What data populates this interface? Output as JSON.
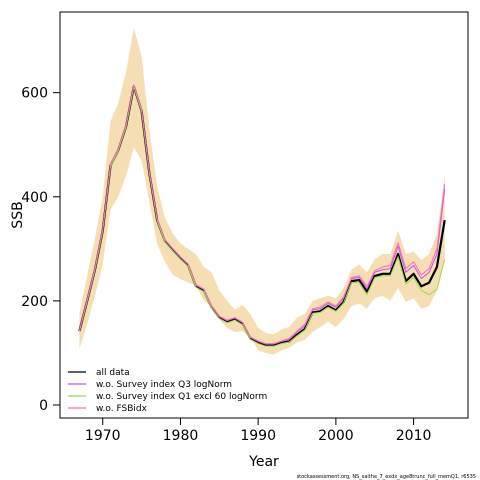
{
  "chart_data": {
    "type": "line",
    "xlabel": "Year",
    "ylabel": "SSB",
    "xlim": [
      1964.5,
      2017
    ],
    "ylim": [
      -25,
      755
    ],
    "xticks": [
      1970,
      1980,
      1990,
      2000,
      2010
    ],
    "yticks": [
      0,
      200,
      400,
      600
    ],
    "grid": false,
    "legend_position": "bottom-left",
    "footer": "stockassessment.org, NS_saithe_7_exdx_age8trunc_full_memQ1, r6535",
    "x": [
      1967,
      1968,
      1969,
      1970,
      1971,
      1972,
      1973,
      1974,
      1975,
      1976,
      1977,
      1978,
      1979,
      1980,
      1981,
      1982,
      1983,
      1984,
      1985,
      1986,
      1987,
      1988,
      1989,
      1990,
      1991,
      1992,
      1993,
      1994,
      1995,
      1996,
      1997,
      1998,
      1999,
      2000,
      2001,
      2002,
      2003,
      2004,
      2005,
      2006,
      2007,
      2008,
      2009,
      2010,
      2011,
      2012,
      2013,
      2014
    ],
    "confidence_band": {
      "color": "#f5deb3",
      "lower": [
        108,
        155,
        210,
        270,
        375,
        400,
        440,
        495,
        470,
        390,
        310,
        275,
        250,
        242,
        235,
        230,
        200,
        190,
        165,
        148,
        140,
        142,
        130,
        105,
        100,
        97,
        105,
        110,
        120,
        125,
        140,
        150,
        160,
        150,
        165,
        190,
        195,
        185,
        205,
        210,
        200,
        225,
        198,
        205,
        185,
        190,
        220,
        275
      ],
      "upper": [
        175,
        250,
        320,
        400,
        545,
        580,
        640,
        725,
        670,
        530,
        420,
        360,
        330,
        310,
        300,
        290,
        265,
        255,
        220,
        200,
        183,
        192,
        175,
        148,
        138,
        136,
        145,
        150,
        168,
        175,
        200,
        205,
        210,
        205,
        225,
        260,
        270,
        255,
        280,
        290,
        290,
        335,
        290,
        295,
        278,
        290,
        330,
        440
      ]
    },
    "series": [
      {
        "name": "all data",
        "color": "#000000",
        "width": 2.2,
        "values": [
          142,
          200,
          260,
          335,
          460,
          490,
          535,
          612,
          565,
          445,
          355,
          315,
          298,
          282,
          268,
          228,
          220,
          188,
          168,
          160,
          165,
          156,
          128,
          120,
          115,
          115,
          120,
          122,
          135,
          146,
          178,
          180,
          190,
          182,
          198,
          238,
          240,
          218,
          248,
          252,
          252,
          290,
          238,
          252,
          228,
          235,
          265,
          355
        ]
      },
      {
        "name": "w.o. Survey index Q3 logNorm",
        "color": "#c050ff",
        "width": 1,
        "values": [
          143,
          201,
          262,
          337,
          462,
          492,
          537,
          614,
          567,
          447,
          357,
          317,
          300,
          284,
          270,
          230,
          222,
          190,
          170,
          162,
          167,
          158,
          130,
          122,
          117,
          117,
          122,
          126,
          140,
          152,
          183,
          185,
          195,
          188,
          205,
          243,
          245,
          223,
          255,
          260,
          262,
          305,
          255,
          268,
          243,
          255,
          290,
          415
        ]
      },
      {
        "name": "w.o. Survey index Q1 excl 60 logNorm",
        "color": "#99dd44",
        "width": 1,
        "values": [
          141,
          199,
          259,
          334,
          458,
          489,
          534,
          611,
          564,
          444,
          354,
          313,
          296,
          280,
          266,
          226,
          218,
          186,
          166,
          158,
          163,
          154,
          126,
          118,
          113,
          113,
          118,
          121,
          133,
          144,
          176,
          178,
          188,
          180,
          196,
          235,
          235,
          212,
          245,
          248,
          248,
          285,
          232,
          245,
          220,
          212,
          222,
          280
        ]
      },
      {
        "name": "w.o. FSBidx",
        "color": "#ff6eb4",
        "width": 1,
        "values": [
          143,
          202,
          263,
          338,
          463,
          493,
          538,
          615,
          568,
          448,
          358,
          318,
          301,
          285,
          271,
          231,
          223,
          191,
          171,
          163,
          168,
          159,
          131,
          123,
          118,
          118,
          123,
          128,
          142,
          155,
          185,
          188,
          198,
          190,
          208,
          245,
          248,
          228,
          258,
          265,
          268,
          312,
          262,
          275,
          250,
          262,
          300,
          425
        ]
      }
    ]
  }
}
